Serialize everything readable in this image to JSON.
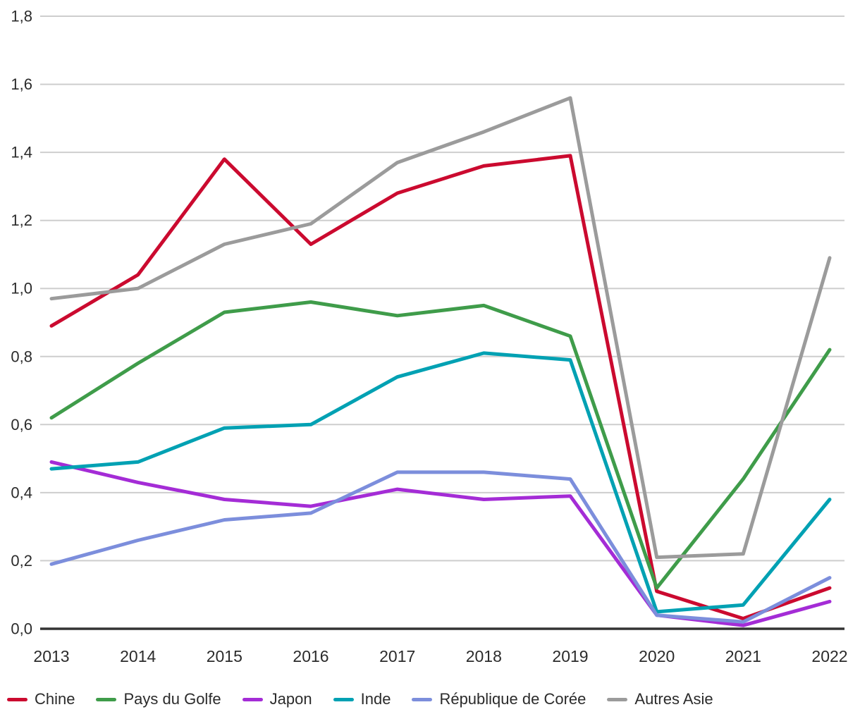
{
  "chart_data": {
    "type": "line",
    "title": "",
    "xlabel": "",
    "ylabel": "",
    "x": [
      "2013",
      "2014",
      "2015",
      "2016",
      "2017",
      "2018",
      "2019",
      "2020",
      "2021",
      "2022"
    ],
    "series": [
      {
        "name": "Chine",
        "color": "#cb0a2f",
        "values": [
          0.89,
          1.04,
          1.38,
          1.13,
          1.28,
          1.36,
          1.39,
          0.11,
          0.03,
          0.12
        ]
      },
      {
        "name": "Pays du Golfe",
        "color": "#3f9c4a",
        "values": [
          0.62,
          0.78,
          0.93,
          0.96,
          0.92,
          0.95,
          0.86,
          0.12,
          0.44,
          0.82
        ]
      },
      {
        "name": "Japon",
        "color": "#a42cd6",
        "values": [
          0.49,
          0.43,
          0.38,
          0.36,
          0.41,
          0.38,
          0.39,
          0.04,
          0.01,
          0.08
        ]
      },
      {
        "name": "Inde",
        "color": "#00a1b3",
        "values": [
          0.47,
          0.49,
          0.59,
          0.6,
          0.74,
          0.81,
          0.79,
          0.05,
          0.07,
          0.38
        ]
      },
      {
        "name": "République de Corée",
        "color": "#7c8edc",
        "values": [
          0.19,
          0.26,
          0.32,
          0.34,
          0.46,
          0.46,
          0.44,
          0.04,
          0.02,
          0.15
        ]
      },
      {
        "name": "Autres Asie",
        "color": "#9b9b9b",
        "values": [
          0.97,
          1.0,
          1.13,
          1.19,
          1.37,
          1.46,
          1.56,
          0.21,
          0.22,
          1.09
        ]
      }
    ],
    "ylim": [
      0,
      1.8
    ],
    "ytick_step": 0.2,
    "ytick_labels": [
      "0,0",
      "0,2",
      "0,4",
      "0,6",
      "0,8",
      "1,0",
      "1,2",
      "1,4",
      "1,6",
      "1,8"
    ],
    "grid": true,
    "legend_position": "bottom",
    "number_format": "decimal-comma"
  },
  "colors": {
    "grid": "#cecece",
    "axis": "#333333",
    "text": "#2b2b2b"
  }
}
